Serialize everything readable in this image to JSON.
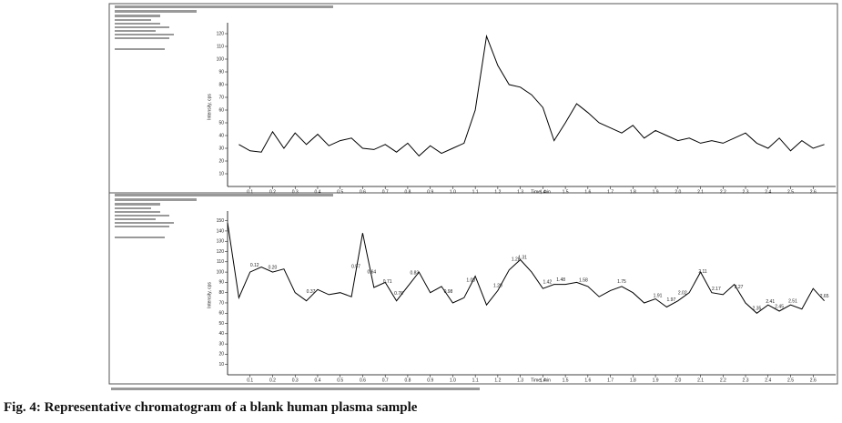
{
  "chart_data": [
    {
      "type": "line",
      "x_label": "Time, min",
      "y_label": "Intensity, cps",
      "xlim": [
        0.0,
        2.7
      ],
      "ylim": [
        0,
        125
      ],
      "xticks": [
        0.1,
        0.2,
        0.3,
        0.4,
        0.5,
        0.6,
        0.7,
        0.8,
        0.9,
        {
          "value": 1,
          "label": "1.0"
        },
        1.1,
        1.2,
        1.3,
        1.4,
        1.5,
        1.6,
        1.7,
        1.8,
        1.9,
        {
          "value": 2,
          "label": "2.0"
        },
        2.1,
        2.2,
        2.3,
        2.4,
        2.5,
        2.6
      ],
      "yticks": [
        10,
        20,
        30,
        40,
        50,
        60,
        70,
        80,
        90,
        100,
        110,
        120
      ],
      "x": [
        0.05,
        0.1,
        0.15,
        0.2,
        0.25,
        0.3,
        0.35,
        0.4,
        0.45,
        0.5,
        0.55,
        0.6,
        0.65,
        0.7,
        0.75,
        0.8,
        0.85,
        0.9,
        0.95,
        1.0,
        1.05,
        1.1,
        1.15,
        1.2,
        1.25,
        1.3,
        1.35,
        1.4,
        1.45,
        1.5,
        1.55,
        1.6,
        1.65,
        1.7,
        1.75,
        1.8,
        1.85,
        1.9,
        1.95,
        2.0,
        2.05,
        2.1,
        2.15,
        2.2,
        2.25,
        2.3,
        2.35,
        2.4,
        2.45,
        2.5,
        2.55,
        2.6,
        2.65
      ],
      "series": [
        {
          "color": "#000000",
          "values": [
            33,
            28,
            27,
            43,
            30,
            42,
            33,
            41,
            32,
            36,
            38,
            30,
            29,
            33,
            27,
            34,
            24,
            32,
            26,
            30,
            34,
            60,
            118,
            95,
            80,
            78,
            72,
            62,
            36,
            50,
            65,
            58,
            50,
            46,
            42,
            48,
            38,
            44,
            40,
            36,
            38,
            34,
            36,
            34,
            38,
            42,
            34,
            30,
            38,
            28,
            36,
            30,
            33
          ]
        }
      ]
    },
    {
      "type": "line",
      "x_label": "Time, min",
      "y_label": "Intensity, cps",
      "xlim": [
        0.0,
        2.7
      ],
      "ylim": [
        0,
        155
      ],
      "xticks": [
        0.1,
        0.2,
        0.3,
        0.4,
        0.5,
        0.6,
        0.7,
        0.8,
        0.9,
        {
          "value": 1,
          "label": "1.0"
        },
        1.1,
        1.2,
        1.3,
        1.4,
        1.5,
        1.6,
        1.7,
        1.8,
        1.9,
        {
          "value": 2,
          "label": "2.0"
        },
        2.1,
        2.2,
        2.3,
        2.4,
        2.5,
        2.6
      ],
      "yticks": [
        10,
        20,
        30,
        40,
        50,
        60,
        70,
        80,
        90,
        100,
        110,
        120,
        130,
        140,
        150
      ],
      "x": [
        0.0,
        0.05,
        0.1,
        0.15,
        0.2,
        0.25,
        0.3,
        0.35,
        0.4,
        0.45,
        0.5,
        0.55,
        0.6,
        0.65,
        0.7,
        0.75,
        0.8,
        0.85,
        0.9,
        0.95,
        1.0,
        1.05,
        1.1,
        1.15,
        1.2,
        1.25,
        1.3,
        1.35,
        1.4,
        1.45,
        1.5,
        1.55,
        1.6,
        1.65,
        1.7,
        1.75,
        1.8,
        1.85,
        1.9,
        1.95,
        2.0,
        2.05,
        2.1,
        2.15,
        2.2,
        2.25,
        2.3,
        2.35,
        2.4,
        2.45,
        2.5,
        2.55,
        2.6,
        2.65
      ],
      "series": [
        {
          "color": "#000000",
          "values": [
            148,
            75,
            100,
            105,
            100,
            103,
            80,
            72,
            83,
            78,
            80,
            76,
            138,
            85,
            90,
            72,
            86,
            100,
            80,
            86,
            70,
            75,
            96,
            68,
            82,
            102,
            112,
            100,
            84,
            88,
            88,
            90,
            86,
            76,
            82,
            86,
            80,
            70,
            74,
            66,
            72,
            80,
            100,
            80,
            78,
            88,
            70,
            60,
            68,
            62,
            68,
            64,
            84,
            72
          ]
        }
      ],
      "peak_labels": [
        0.12,
        {
          "value": 0.2,
          "label": "0.20"
        },
        0.37,
        0.57,
        0.64,
        0.71,
        0.76,
        0.83,
        0.98,
        1.08,
        {
          "value": 1.2,
          "label": "1.20"
        },
        1.28,
        1.31,
        1.42,
        1.48,
        1.58,
        1.75,
        1.91,
        1.97,
        2.02,
        2.11,
        2.17,
        2.27,
        2.35,
        2.41,
        2.45,
        2.51,
        2.65
      ]
    }
  ],
  "caption": "Fig. 4: Representative chromatogram of a blank human plasma sample"
}
